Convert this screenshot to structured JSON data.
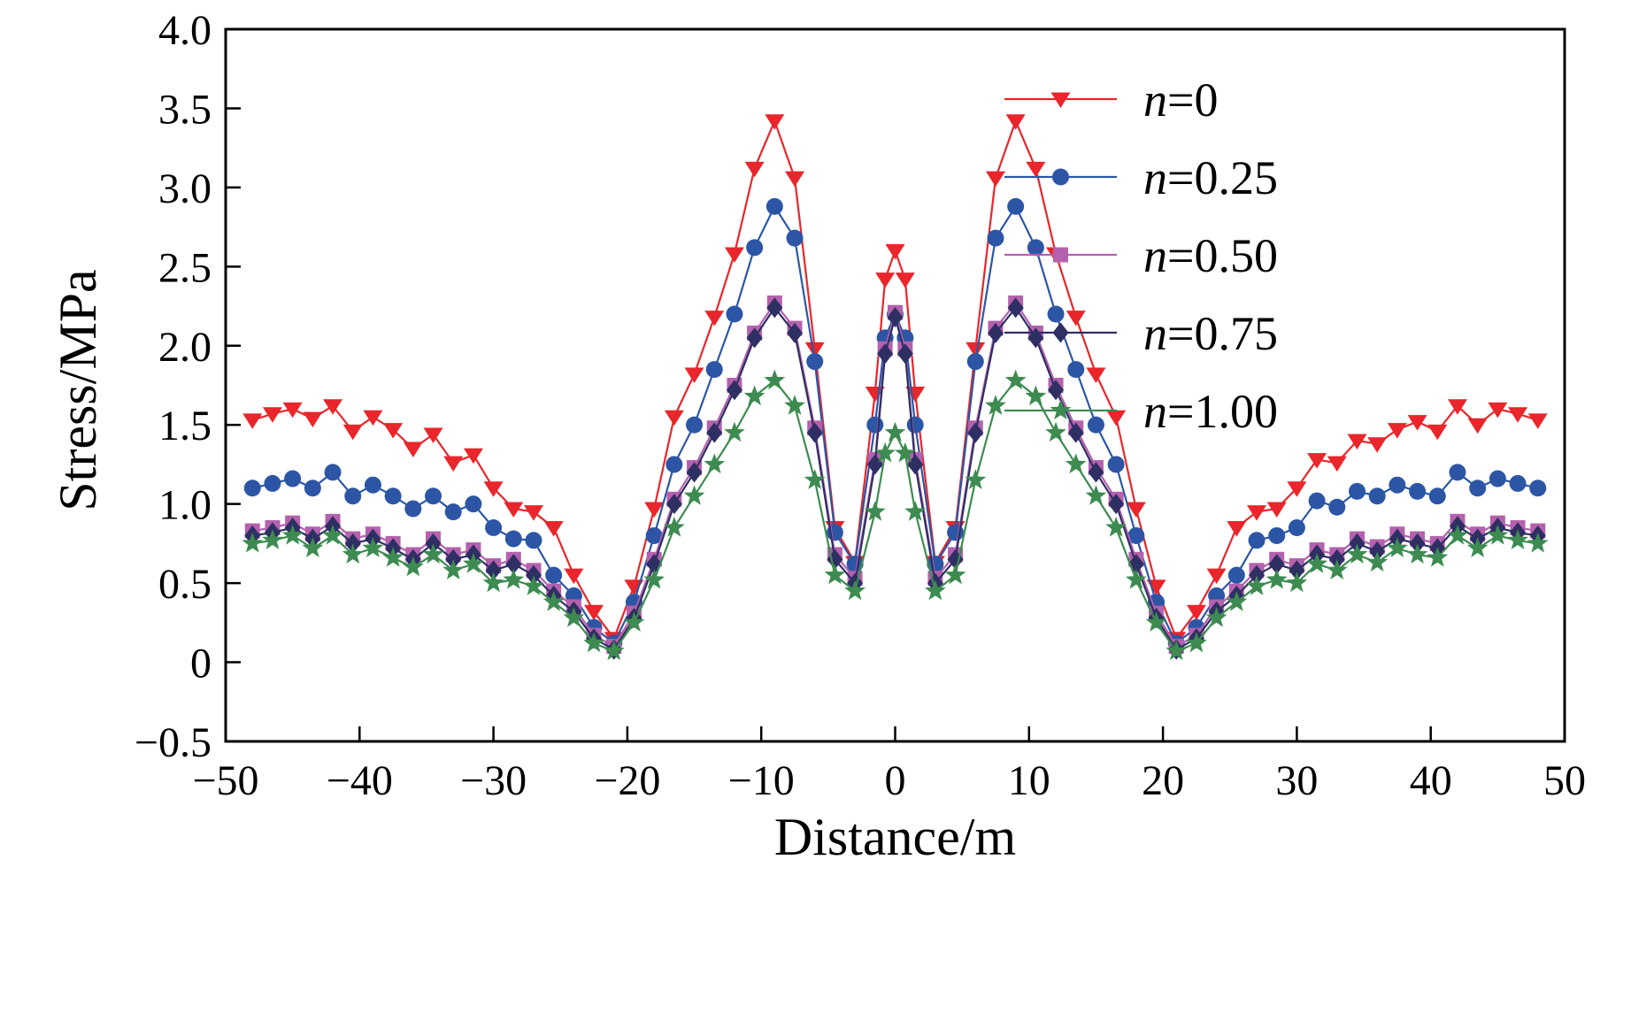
{
  "figure": {
    "background": "#ffffff",
    "frame_color": "#000000"
  },
  "chart_data": {
    "type": "line",
    "title": "",
    "xlabel": "Distance/m",
    "ylabel": "Stress/MPa",
    "xlim": [
      -50,
      50
    ],
    "ylim": [
      -0.5,
      4.0
    ],
    "grid": false,
    "legend_position": "top-right",
    "x_ticks": [
      -50,
      -40,
      -30,
      -20,
      -10,
      0,
      10,
      20,
      30,
      40,
      50
    ],
    "x_tick_labels": [
      "−50",
      "−40",
      "−30",
      "−20",
      "−10",
      "0",
      "10",
      "20",
      "30",
      "40",
      "50"
    ],
    "y_ticks": [
      -0.5,
      0,
      0.5,
      1.0,
      1.5,
      2.0,
      2.5,
      3.0,
      3.5,
      4.0
    ],
    "y_tick_labels": [
      "−0.5",
      "0",
      "0.5",
      "1.0",
      "1.5",
      "2.0",
      "2.5",
      "3.0",
      "3.5",
      "4.0"
    ],
    "x": [
      -48,
      -46.5,
      -45,
      -43.5,
      -42,
      -40.5,
      -39,
      -37.5,
      -36,
      -34.5,
      -33,
      -31.5,
      -30,
      -28.5,
      -27,
      -25.5,
      -24,
      -22.5,
      -21,
      -19.5,
      -18,
      -16.5,
      -15,
      -13.5,
      -12,
      -10.5,
      -9,
      -7.5,
      -6,
      -4.5,
      -3,
      -1.5,
      -0.75,
      0,
      0.75,
      1.5,
      3,
      4.5,
      6,
      7.5,
      9,
      10.5,
      12,
      13.5,
      15,
      16.5,
      18,
      19.5,
      21,
      22.5,
      24,
      25.5,
      27,
      28.5,
      30,
      31.5,
      33,
      34.5,
      36,
      37.5,
      39,
      40.5,
      42,
      43.5,
      45,
      46.5,
      48
    ],
    "series": [
      {
        "name": "n=0",
        "label_var": "n",
        "label_rest": "=0",
        "color": "#e8262b",
        "marker": "triangle-down",
        "values": [
          1.53,
          1.57,
          1.6,
          1.54,
          1.62,
          1.46,
          1.55,
          1.47,
          1.35,
          1.44,
          1.26,
          1.31,
          1.1,
          0.97,
          0.95,
          0.85,
          0.55,
          0.32,
          0.15,
          0.48,
          0.97,
          1.55,
          1.82,
          2.18,
          2.58,
          3.12,
          3.42,
          3.06,
          1.98,
          0.85,
          0.63,
          1.7,
          2.42,
          2.6,
          2.42,
          1.7,
          0.63,
          0.85,
          1.98,
          3.06,
          3.42,
          3.12,
          2.58,
          2.18,
          1.82,
          1.55,
          0.97,
          0.48,
          0.15,
          0.32,
          0.55,
          0.85,
          0.95,
          0.97,
          1.1,
          1.28,
          1.26,
          1.4,
          1.38,
          1.47,
          1.52,
          1.46,
          1.62,
          1.5,
          1.6,
          1.57,
          1.53
        ]
      },
      {
        "name": "n=0.25",
        "label_var": "n",
        "label_rest": "=0.25",
        "color": "#2c56a5",
        "marker": "circle",
        "values": [
          1.1,
          1.13,
          1.16,
          1.1,
          1.2,
          1.05,
          1.12,
          1.05,
          0.97,
          1.05,
          0.95,
          1.0,
          0.85,
          0.78,
          0.77,
          0.55,
          0.42,
          0.22,
          0.12,
          0.38,
          0.8,
          1.25,
          1.5,
          1.85,
          2.2,
          2.62,
          2.88,
          2.68,
          1.9,
          0.82,
          0.62,
          1.5,
          2.05,
          2.2,
          2.05,
          1.5,
          0.62,
          0.82,
          1.9,
          2.68,
          2.88,
          2.62,
          2.2,
          1.85,
          1.5,
          1.25,
          0.8,
          0.38,
          0.12,
          0.22,
          0.42,
          0.55,
          0.77,
          0.8,
          0.85,
          1.02,
          0.98,
          1.08,
          1.05,
          1.12,
          1.08,
          1.05,
          1.2,
          1.1,
          1.16,
          1.13,
          1.1
        ]
      },
      {
        "name": "n=0.50",
        "label_var": "n",
        "label_rest": "=0.50",
        "color": "#b461ae",
        "marker": "square",
        "values": [
          0.83,
          0.85,
          0.88,
          0.81,
          0.89,
          0.78,
          0.81,
          0.75,
          0.68,
          0.78,
          0.68,
          0.71,
          0.61,
          0.65,
          0.58,
          0.45,
          0.35,
          0.17,
          0.1,
          0.31,
          0.65,
          1.03,
          1.23,
          1.48,
          1.75,
          2.08,
          2.27,
          2.11,
          1.48,
          0.68,
          0.53,
          1.28,
          1.98,
          2.21,
          1.98,
          1.28,
          0.53,
          0.68,
          1.48,
          2.11,
          2.27,
          2.08,
          1.75,
          1.48,
          1.23,
          1.03,
          0.65,
          0.31,
          0.1,
          0.17,
          0.35,
          0.45,
          0.58,
          0.65,
          0.61,
          0.71,
          0.68,
          0.78,
          0.73,
          0.81,
          0.78,
          0.75,
          0.89,
          0.81,
          0.88,
          0.85,
          0.83
        ]
      },
      {
        "name": "n=0.75",
        "label_var": "n",
        "label_rest": "=0.75",
        "color": "#2e2f63",
        "marker": "diamond",
        "values": [
          0.8,
          0.82,
          0.85,
          0.78,
          0.86,
          0.75,
          0.78,
          0.72,
          0.65,
          0.75,
          0.65,
          0.68,
          0.58,
          0.62,
          0.55,
          0.42,
          0.32,
          0.15,
          0.08,
          0.28,
          0.62,
          1.0,
          1.2,
          1.45,
          1.72,
          2.05,
          2.24,
          2.08,
          1.45,
          0.65,
          0.5,
          1.25,
          1.95,
          2.18,
          1.95,
          1.25,
          0.5,
          0.65,
          1.45,
          2.08,
          2.24,
          2.05,
          1.72,
          1.45,
          1.2,
          1.0,
          0.62,
          0.28,
          0.08,
          0.15,
          0.32,
          0.42,
          0.55,
          0.62,
          0.58,
          0.68,
          0.65,
          0.75,
          0.7,
          0.78,
          0.75,
          0.72,
          0.86,
          0.78,
          0.85,
          0.82,
          0.8
        ]
      },
      {
        "name": "n=1.00",
        "label_var": "n",
        "label_rest": "=1.00",
        "color": "#3d8b51",
        "marker": "star",
        "values": [
          0.75,
          0.77,
          0.8,
          0.72,
          0.8,
          0.68,
          0.72,
          0.66,
          0.6,
          0.68,
          0.58,
          0.62,
          0.5,
          0.52,
          0.48,
          0.38,
          0.28,
          0.12,
          0.07,
          0.25,
          0.52,
          0.85,
          1.05,
          1.25,
          1.45,
          1.68,
          1.78,
          1.62,
          1.15,
          0.55,
          0.45,
          0.95,
          1.32,
          1.45,
          1.32,
          0.95,
          0.45,
          0.55,
          1.15,
          1.62,
          1.78,
          1.68,
          1.45,
          1.25,
          1.05,
          0.85,
          0.52,
          0.25,
          0.07,
          0.12,
          0.28,
          0.38,
          0.48,
          0.52,
          0.5,
          0.62,
          0.58,
          0.68,
          0.63,
          0.72,
          0.68,
          0.66,
          0.8,
          0.72,
          0.8,
          0.77,
          0.75
        ]
      }
    ]
  }
}
